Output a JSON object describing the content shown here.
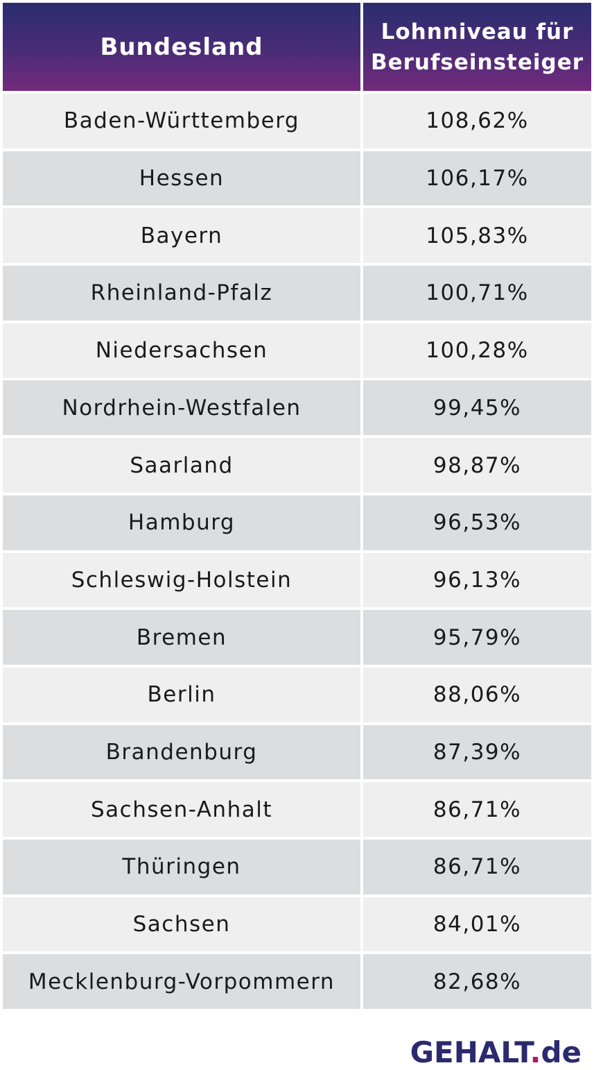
{
  "chart_data": {
    "type": "table",
    "columns": [
      "Bundesland",
      "Lohnniveau für Berufseinsteiger"
    ],
    "rows": [
      {
        "bundesland": "Baden-Württemberg",
        "wert": "108,62%"
      },
      {
        "bundesland": "Hessen",
        "wert": "106,17%"
      },
      {
        "bundesland": "Bayern",
        "wert": "105,83%"
      },
      {
        "bundesland": "Rheinland-Pfalz",
        "wert": "100,71%"
      },
      {
        "bundesland": "Niedersachsen",
        "wert": "100,28%"
      },
      {
        "bundesland": "Nordrhein-Westfalen",
        "wert": "99,45%"
      },
      {
        "bundesland": "Saarland",
        "wert": "98,87%"
      },
      {
        "bundesland": "Hamburg",
        "wert": "96,53%"
      },
      {
        "bundesland": "Schleswig-Holstein",
        "wert": "96,13%"
      },
      {
        "bundesland": "Bremen",
        "wert": "95,79%"
      },
      {
        "bundesland": "Berlin",
        "wert": "88,06%"
      },
      {
        "bundesland": "Brandenburg",
        "wert": "87,39%"
      },
      {
        "bundesland": "Sachsen-Anhalt",
        "wert": "86,71%"
      },
      {
        "bundesland": "Thüringen",
        "wert": "86,71%"
      },
      {
        "bundesland": "Sachsen",
        "wert": "84,01%"
      },
      {
        "bundesland": "Mecklenburg-Vorpommern",
        "wert": "82,68%"
      }
    ]
  },
  "header": {
    "col1": "Bundesland",
    "col2_line1": "Lohnniveau für",
    "col2_line2": "Berufseinsteiger"
  },
  "logo": {
    "brand": "GEHALT",
    "dot": ".",
    "tld": "de"
  },
  "colors": {
    "header_gradient_top": "#2b2d6e",
    "header_gradient_bottom": "#742a7c",
    "row_light": "#efefef",
    "row_dark": "#dcdddf",
    "logo_text": "#2c2a6e",
    "logo_dot": "#b0166a"
  }
}
